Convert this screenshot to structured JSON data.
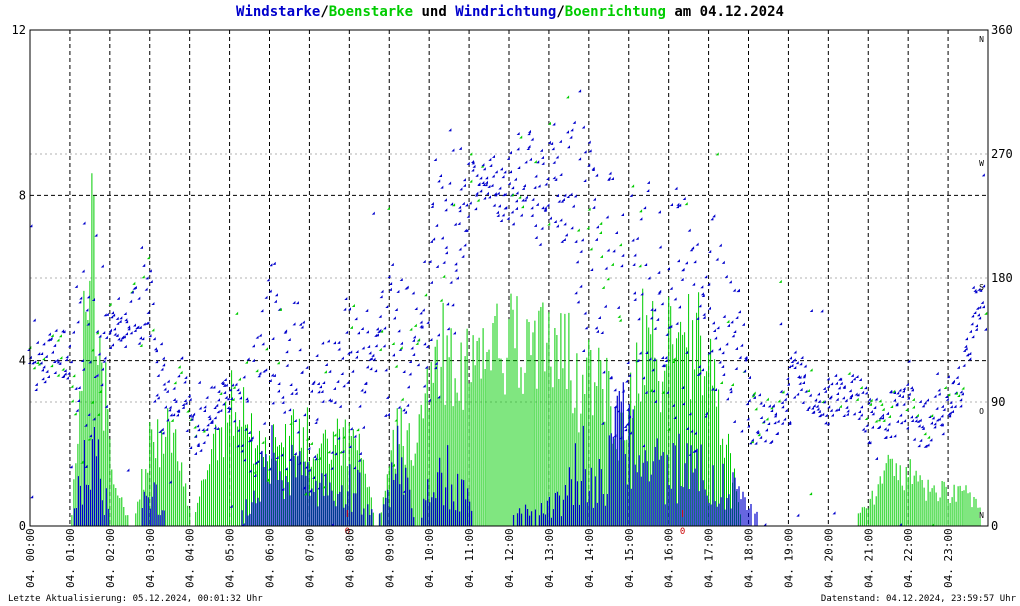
{
  "title": {
    "part1": "Windstarke",
    "slash1": "/",
    "part2": "Boenstarke",
    "und": " und ",
    "part3": "Windrichtung",
    "slash2": "/",
    "part4": "Boenrichtung",
    "date": " am 04.12.2024"
  },
  "footer": {
    "left": "Letzte Aktualisierung: 05.12.2024, 00:01:32 Uhr",
    "right": "Datenstand: 04.12.2024, 23:59:57 Uhr"
  },
  "colors": {
    "wind": "#0000cc",
    "gust": "#00cc00",
    "marker_red": "#cc0000"
  },
  "chart_data": {
    "type": "scatter",
    "x_ticks": [
      "04. 00:00",
      "04. 01:00",
      "04. 02:00",
      "04. 03:00",
      "04. 04:00",
      "04. 05:00",
      "04. 06:00",
      "04. 07:00",
      "04. 08:00",
      "04. 09:00",
      "04. 10:00",
      "04. 11:00",
      "04. 12:00",
      "04. 13:00",
      "04. 14:00",
      "04. 15:00",
      "04. 16:00",
      "04. 17:00",
      "04. 18:00",
      "04. 19:00",
      "04. 20:00",
      "04. 21:00",
      "04. 22:00",
      "04. 23:00"
    ],
    "y_left_ticks": [
      "0",
      "4",
      "8",
      "12"
    ],
    "y_left_range": [
      0,
      12
    ],
    "y_right_ticks": [
      "0",
      "90",
      "180",
      "270",
      "360"
    ],
    "y_right_range": [
      0,
      360
    ],
    "compass_labels": [
      {
        "deg": 0,
        "label": "N"
      },
      {
        "deg": 90,
        "label": "O"
      },
      {
        "deg": 180,
        "label": "S"
      },
      {
        "deg": 270,
        "label": "W"
      },
      {
        "deg": 360,
        "label": "N"
      }
    ],
    "red_markers": [
      {
        "hour": 7.95,
        "label": "0"
      },
      {
        "hour": 16.35,
        "label": "0"
      }
    ],
    "direction_anchor_deg": [
      110,
      120,
      125,
      122,
      125,
      150,
      145,
      140,
      150,
      165,
      110,
      80,
      105,
      60,
      80,
      90,
      85,
      80,
      95,
      115,
      95,
      100,
      75,
      80,
      85,
      110,
      95,
      120,
      130,
      110,
      140,
      145,
      165,
      220,
      230,
      250,
      255,
      240,
      245,
      265,
      235,
      260,
      240,
      250,
      210,
      175,
      165,
      160,
      165,
      165,
      165,
      160,
      130,
      150,
      160,
      135,
      110,
      80,
      75,
      90,
      110,
      100,
      85,
      90,
      95,
      90,
      75,
      80,
      80,
      85,
      70,
      80,
      90,
      100,
      160,
      155
    ],
    "speed_anchor": [
      0,
      0,
      0,
      3.2,
      0,
      0,
      1.3,
      0,
      0,
      0,
      0,
      1.2,
      2.5,
      1.8,
      1.2,
      1.2,
      1.5,
      0,
      2.3,
      0,
      2.5,
      1.5,
      0,
      0,
      0.5,
      0.5,
      1.0,
      2.5,
      1.5,
      3.3,
      2.5,
      1.8,
      2.5,
      2.0,
      1.5,
      1.0,
      0,
      0,
      0,
      0,
      0,
      0,
      0,
      0,
      0,
      0,
      0,
      0
    ],
    "gust_anchor": [
      0,
      0,
      0,
      8.5,
      1.5,
      0,
      2.5,
      2.5,
      0,
      2.5,
      3.5,
      2.5,
      2.5,
      2.5,
      2.5,
      2.5,
      2.5,
      0,
      2.5,
      2.5,
      5.0,
      4.5,
      5.0,
      5.0,
      5.0,
      5.0,
      5.0,
      4.0,
      4.0,
      2.5,
      5.0,
      5.0,
      5.0,
      5.0,
      3.0,
      0,
      0,
      0,
      0,
      0,
      0,
      0.5,
      1.5,
      1.5,
      1.0,
      1.0,
      1.0,
      0
    ]
  }
}
